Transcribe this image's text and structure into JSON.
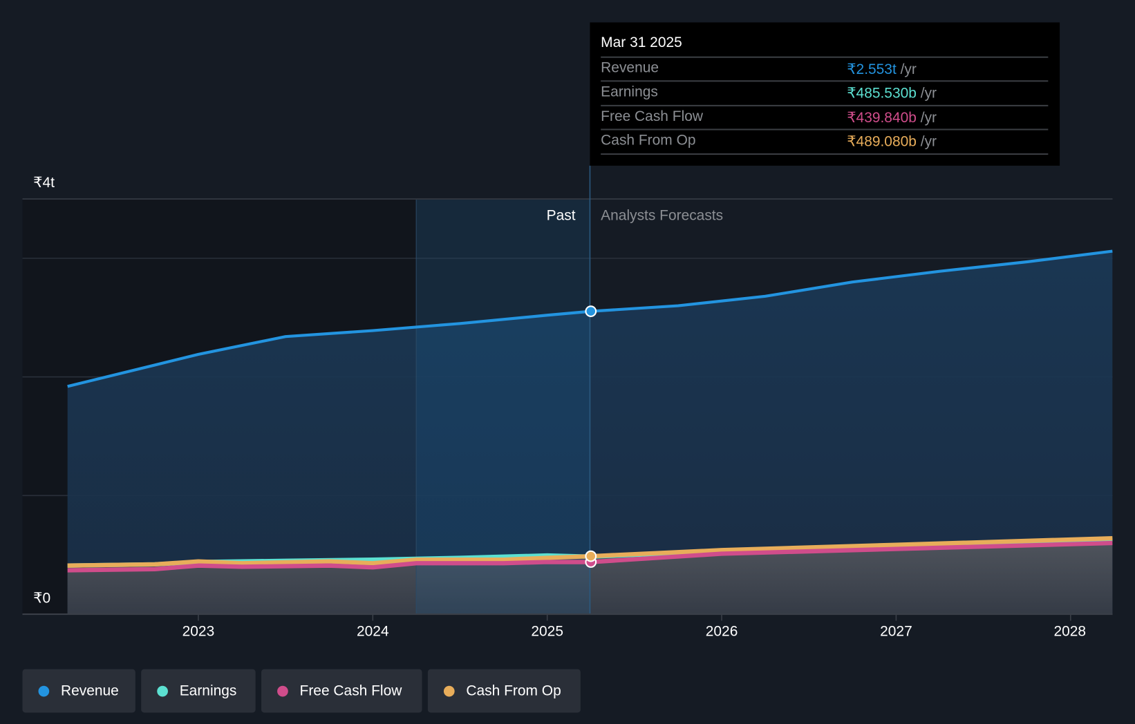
{
  "chart_data": {
    "type": "area",
    "title": "",
    "x_range": [
      2022.25,
      2028.24
    ],
    "ylim": [
      0,
      3.5
    ],
    "y_unit": "trillion INR",
    "y_tick_labels": [
      "₹4t",
      "₹0"
    ],
    "x_ticks": [
      "2023",
      "2024",
      "2025",
      "2026",
      "2027",
      "2028"
    ],
    "x_tick_values": [
      2023,
      2024,
      2025,
      2026,
      2027,
      2028
    ],
    "past_label": "Past",
    "forecast_label": "Analysts Forecasts",
    "divider_x": 2025.25,
    "highlight_start": 2024.25,
    "grid": true,
    "legend_position": "bottom-left",
    "series": [
      {
        "name": "Revenue",
        "color": "#2394e0",
        "x": [
          2022.25,
          2022.75,
          2023,
          2023.5,
          2024,
          2024.5,
          2025,
          2025.25,
          2025.75,
          2026.25,
          2026.75,
          2027.25,
          2027.75,
          2028.24
        ],
        "values": [
          1.92,
          2.1,
          2.19,
          2.34,
          2.39,
          2.45,
          2.52,
          2.553,
          2.6,
          2.68,
          2.8,
          2.89,
          2.97,
          3.06
        ]
      },
      {
        "name": "Earnings",
        "color": "#5ce0d1",
        "x": [
          2022.25,
          2022.75,
          2023,
          2023.5,
          2024,
          2024.5,
          2025,
          2025.25,
          2026,
          2027,
          2028.24
        ],
        "values": [
          0.41,
          0.42,
          0.44,
          0.45,
          0.46,
          0.475,
          0.495,
          0.4855,
          0.53,
          0.575,
          0.63
        ]
      },
      {
        "name": "Free Cash Flow",
        "color": "#d04d8b",
        "x": [
          2022.25,
          2022.75,
          2023,
          2023.25,
          2023.75,
          2024,
          2024.25,
          2024.75,
          2025,
          2025.25,
          2026,
          2027,
          2028.24
        ],
        "values": [
          0.37,
          0.38,
          0.41,
          0.4,
          0.41,
          0.395,
          0.43,
          0.43,
          0.44,
          0.4398,
          0.51,
          0.55,
          0.6
        ]
      },
      {
        "name": "Cash From Op",
        "color": "#e8ad5a",
        "x": [
          2022.25,
          2022.75,
          2023,
          2023.25,
          2023.75,
          2024,
          2024.25,
          2024.75,
          2025,
          2025.25,
          2026,
          2027,
          2028.24
        ],
        "values": [
          0.41,
          0.42,
          0.445,
          0.43,
          0.445,
          0.43,
          0.46,
          0.46,
          0.475,
          0.4891,
          0.54,
          0.585,
          0.64
        ]
      }
    ]
  },
  "tooltip": {
    "date": "Mar 31 2025",
    "unit": "/yr",
    "rows": [
      {
        "label": "Revenue",
        "value": "₹2.553t",
        "color": "#2394e0"
      },
      {
        "label": "Earnings",
        "value": "₹485.530b",
        "color": "#5ce0d1"
      },
      {
        "label": "Free Cash Flow",
        "value": "₹439.840b",
        "color": "#d04d8b"
      },
      {
        "label": "Cash From Op",
        "value": "₹489.080b",
        "color": "#e8ad5a"
      }
    ]
  },
  "legend": [
    {
      "label": "Revenue",
      "color": "#2394e0"
    },
    {
      "label": "Earnings",
      "color": "#5ce0d1"
    },
    {
      "label": "Free Cash Flow",
      "color": "#d04d8b"
    },
    {
      "label": "Cash From Op",
      "color": "#e8ad5a"
    }
  ]
}
